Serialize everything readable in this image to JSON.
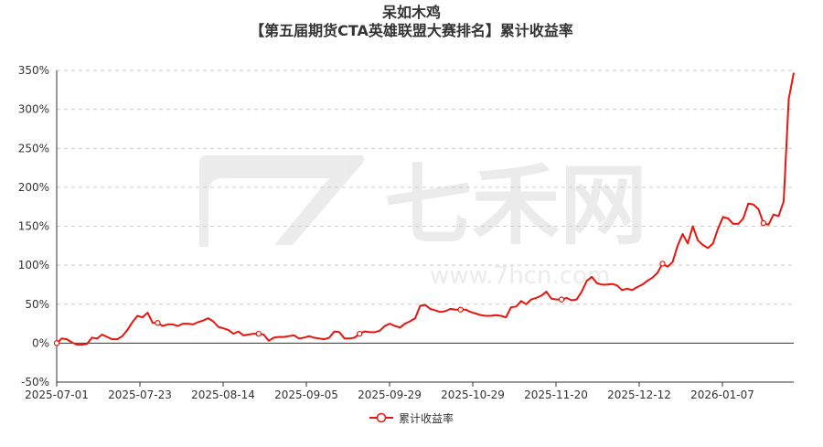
{
  "title": {
    "line1": "呆如木鸡",
    "line2": "【第五届期货CTA英雄联盟大赛排名】累计收益率"
  },
  "watermark": {
    "brand": "七禾网",
    "url": "www.7hcn.com"
  },
  "colors": {
    "series": "#e8140d",
    "grid": "#cccccc",
    "axis": "#333333"
  },
  "chart_data": {
    "type": "line",
    "ylim": [
      -50,
      350
    ],
    "yticks": [
      -50,
      0,
      50,
      100,
      150,
      200,
      250,
      300,
      350
    ],
    "ytick_suffix": "%",
    "xtick_labels": [
      "2025-07-01",
      "2025-07-23",
      "2025-08-14",
      "2025-09-05",
      "2025-09-29",
      "2025-10-29",
      "2025-11-20",
      "2025-12-12",
      "2026-01-07"
    ],
    "grid": "horizontal-dashed",
    "legend_position": "bottom-center",
    "series": [
      {
        "name": "累计收益率",
        "marker_every": 20,
        "values": [
          0,
          6,
          5,
          1,
          -2,
          -2,
          -1,
          7,
          6,
          11,
          8,
          5,
          5,
          9,
          17,
          27,
          35,
          33,
          39,
          26,
          26,
          22,
          24,
          24,
          22,
          25,
          25,
          24,
          27,
          29,
          32,
          28,
          21,
          19,
          17,
          12,
          15,
          10,
          11,
          12,
          12,
          11,
          3,
          7,
          8,
          8,
          9,
          10,
          6,
          7,
          9,
          7,
          6,
          5,
          7,
          15,
          14,
          6,
          6,
          7,
          12,
          15,
          14,
          14,
          16,
          22,
          25,
          22,
          20,
          25,
          28,
          32,
          48,
          49,
          44,
          42,
          40,
          41,
          44,
          43,
          43,
          43,
          40,
          38,
          36,
          35,
          35,
          36,
          35,
          33,
          46,
          47,
          54,
          50,
          56,
          58,
          61,
          66,
          57,
          56,
          56,
          58,
          55,
          56,
          66,
          80,
          85,
          77,
          75,
          75,
          76,
          74,
          68,
          70,
          68,
          72,
          75,
          80,
          84,
          90,
          102,
          98,
          104,
          125,
          140,
          128,
          150,
          132,
          126,
          122,
          128,
          147,
          162,
          160,
          153,
          153,
          160,
          179,
          178,
          172,
          154,
          152,
          165,
          163,
          182,
          313,
          347
        ]
      }
    ]
  },
  "legend": {
    "label": "累计收益率"
  }
}
